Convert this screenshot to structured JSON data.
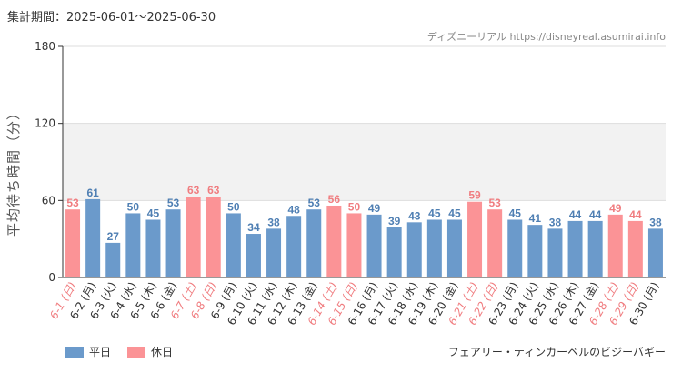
{
  "header": {
    "period": "集計期間：2025-06-01〜2025-06-30",
    "source": "ディズニーリアル https://disneyreal.asumirai.info"
  },
  "footer": {
    "attraction": "フェアリー・ティンカーベルのビジーバギー"
  },
  "chart_data": {
    "type": "bar",
    "ylabel": "平均待ち時間（分）",
    "ylim": [
      0,
      180
    ],
    "yticks": [
      0,
      60,
      120,
      180
    ],
    "grid": true,
    "highlight_band": [
      60,
      120
    ],
    "legend_position": "bottom-left",
    "categories": [
      "6-1 (日)",
      "6-2 (月)",
      "6-3 (火)",
      "6-4 (水)",
      "6-5 (木)",
      "6-6 (金)",
      "6-7 (土)",
      "6-8 (日)",
      "6-9 (月)",
      "6-10 (火)",
      "6-11 (水)",
      "6-12 (木)",
      "6-13 (金)",
      "6-14 (土)",
      "6-15 (日)",
      "6-16 (月)",
      "6-17 (火)",
      "6-18 (水)",
      "6-19 (木)",
      "6-20 (金)",
      "6-21 (土)",
      "6-22 (日)",
      "6-23 (月)",
      "6-24 (火)",
      "6-25 (水)",
      "6-26 (木)",
      "6-27 (金)",
      "6-28 (土)",
      "6-29 (日)",
      "6-30 (月)"
    ],
    "values": [
      53,
      61,
      27,
      50,
      45,
      53,
      63,
      63,
      50,
      34,
      38,
      48,
      53,
      56,
      50,
      49,
      39,
      43,
      45,
      45,
      59,
      53,
      45,
      41,
      38,
      44,
      44,
      49,
      44,
      38
    ],
    "holiday": [
      true,
      false,
      false,
      false,
      false,
      false,
      true,
      true,
      false,
      false,
      false,
      false,
      false,
      true,
      true,
      false,
      false,
      false,
      false,
      false,
      true,
      true,
      false,
      false,
      false,
      false,
      false,
      true,
      true,
      false
    ],
    "series": [
      {
        "name": "平日",
        "color": "#6b9acb",
        "label_color": "#4f7fb3"
      },
      {
        "name": "休日",
        "color": "#fb9396",
        "label_color": "#f07d80"
      }
    ],
    "axis_color": "#333333",
    "grid_color": "#dddddd",
    "band_color": "#f2f2f2"
  }
}
